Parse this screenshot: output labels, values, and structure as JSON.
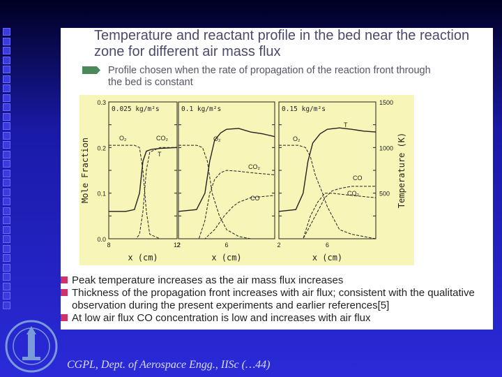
{
  "slide": {
    "title": "Temperature and reactant profile in the bed near the reaction zone for different air mass flux",
    "subtitle": "Profile chosen when the rate of propagation of the reaction front through the bed is constant",
    "bullets": [
      "Peak temperature increases as the air mass flux increases",
      "Thickness of the propagation front increases with air flux; consistent with the qualitative observation during the present experiments and earlier references[5]",
      "At low air flux CO concentration is low and  increases with air flux"
    ],
    "footer": "CGPL, Dept. of Aerospace Engg., IISc (…44)",
    "colors": {
      "chart_bg": "#f7f5b8",
      "curve": "#222222",
      "bullet": "#d0306a",
      "arrow": "#4a8a5a"
    }
  },
  "chart_data": [
    {
      "type": "line",
      "panel_label": "0.025 kg/m²s",
      "ylabel": "Mole Fraction",
      "xlabel": "x (cm)",
      "xlim": [
        8,
        12
      ],
      "xticks": [
        "8",
        "12"
      ],
      "ylim": [
        0,
        0.3
      ],
      "yticks": [
        "0.0",
        "0.1",
        "0.2",
        "0.3"
      ],
      "y2lim": [
        0,
        1500
      ],
      "series": [
        {
          "name": "T",
          "style": "solid",
          "axis": "right",
          "x": [
            8,
            9,
            9.5,
            9.8,
            10.0,
            10.2,
            10.5,
            11,
            12
          ],
          "y": [
            300,
            300,
            320,
            500,
            850,
            960,
            980,
            990,
            1000
          ]
        },
        {
          "name": "O₂",
          "style": "dashed",
          "x": [
            8,
            9.5,
            9.8,
            10.0,
            10.2,
            10.4,
            11,
            12
          ],
          "y": [
            0.205,
            0.205,
            0.2,
            0.15,
            0.06,
            0.01,
            0.0,
            0.0
          ]
        },
        {
          "name": "CO₂",
          "style": "dashed",
          "x": [
            8,
            9.6,
            9.8,
            10.0,
            10.2,
            10.4,
            11,
            12
          ],
          "y": [
            0.0,
            0.0,
            0.01,
            0.06,
            0.15,
            0.19,
            0.2,
            0.2
          ]
        }
      ],
      "labels": [
        "O₂",
        "CO₂",
        "T"
      ]
    },
    {
      "type": "line",
      "panel_label": "0.1 kg/m²s",
      "xlabel": "x (cm)",
      "xlim": [
        2,
        10
      ],
      "xticks": [
        "2",
        "6"
      ],
      "ylim": [
        0,
        0.3
      ],
      "series": [
        {
          "name": "T",
          "style": "solid",
          "axis": "right",
          "x": [
            2,
            3.5,
            4.2,
            4.6,
            5,
            5.5,
            6,
            7,
            8,
            9,
            10
          ],
          "y": [
            300,
            320,
            500,
            850,
            1080,
            1160,
            1200,
            1210,
            1170,
            1150,
            1120
          ]
        },
        {
          "name": "O₂",
          "style": "dashed",
          "x": [
            2,
            3.5,
            4.0,
            4.4,
            4.8,
            5.4,
            6,
            7,
            8,
            10
          ],
          "y": [
            0.205,
            0.205,
            0.2,
            0.17,
            0.1,
            0.05,
            0.02,
            0.005,
            0.0,
            0.0
          ]
        },
        {
          "name": "CO₂",
          "style": "dashed",
          "x": [
            2,
            3.7,
            4.2,
            4.6,
            5,
            5.5,
            6,
            7,
            8,
            10
          ],
          "y": [
            0.0,
            0.0,
            0.04,
            0.1,
            0.13,
            0.145,
            0.15,
            0.148,
            0.145,
            0.14
          ]
        },
        {
          "name": "CO",
          "style": "dashed",
          "x": [
            2,
            4.2,
            5,
            5.8,
            6.5,
            7,
            8,
            10
          ],
          "y": [
            0.0,
            0.0,
            0.02,
            0.05,
            0.07,
            0.08,
            0.09,
            0.095
          ]
        }
      ],
      "labels": [
        "O₂",
        "CO₂",
        "CO"
      ]
    },
    {
      "type": "line",
      "panel_label": "0.15 kg/m²s",
      "ylabel": "Temperature (K)",
      "xlabel": "x (cm)",
      "xlim": [
        2,
        10
      ],
      "xticks": [
        "2",
        "6"
      ],
      "ylim": [
        0,
        0.3
      ],
      "y2lim": [
        0,
        1500
      ],
      "y2ticks": [
        "500",
        "1000",
        "1500"
      ],
      "series": [
        {
          "name": "T",
          "style": "solid",
          "axis": "right",
          "x": [
            2,
            3.4,
            4.0,
            4.4,
            4.8,
            5.4,
            6,
            7,
            8,
            9,
            10
          ],
          "y": [
            300,
            320,
            500,
            850,
            1050,
            1150,
            1200,
            1215,
            1200,
            1180,
            1170
          ]
        },
        {
          "name": "O₂",
          "style": "dashed",
          "x": [
            2,
            3.6,
            4.2,
            4.6,
            5,
            5.6,
            6,
            6.6,
            7,
            8,
            10
          ],
          "y": [
            0.205,
            0.205,
            0.2,
            0.18,
            0.14,
            0.1,
            0.07,
            0.04,
            0.02,
            0.01,
            0.0
          ]
        },
        {
          "name": "CO",
          "style": "dashed",
          "x": [
            2,
            4.0,
            4.6,
            5.2,
            5.8,
            6.4,
            7,
            8,
            10
          ],
          "y": [
            0.0,
            0.0,
            0.03,
            0.06,
            0.09,
            0.105,
            0.11,
            0.115,
            0.115
          ]
        },
        {
          "name": "CO₂",
          "style": "dashed",
          "x": [
            2,
            4.0,
            4.6,
            5.2,
            5.8,
            6.4,
            7,
            8,
            10
          ],
          "y": [
            0.0,
            0.0,
            0.05,
            0.08,
            0.1,
            0.1,
            0.098,
            0.095,
            0.09
          ]
        }
      ],
      "labels": [
        "O₂",
        "T",
        "CO",
        "CO₂"
      ]
    }
  ]
}
